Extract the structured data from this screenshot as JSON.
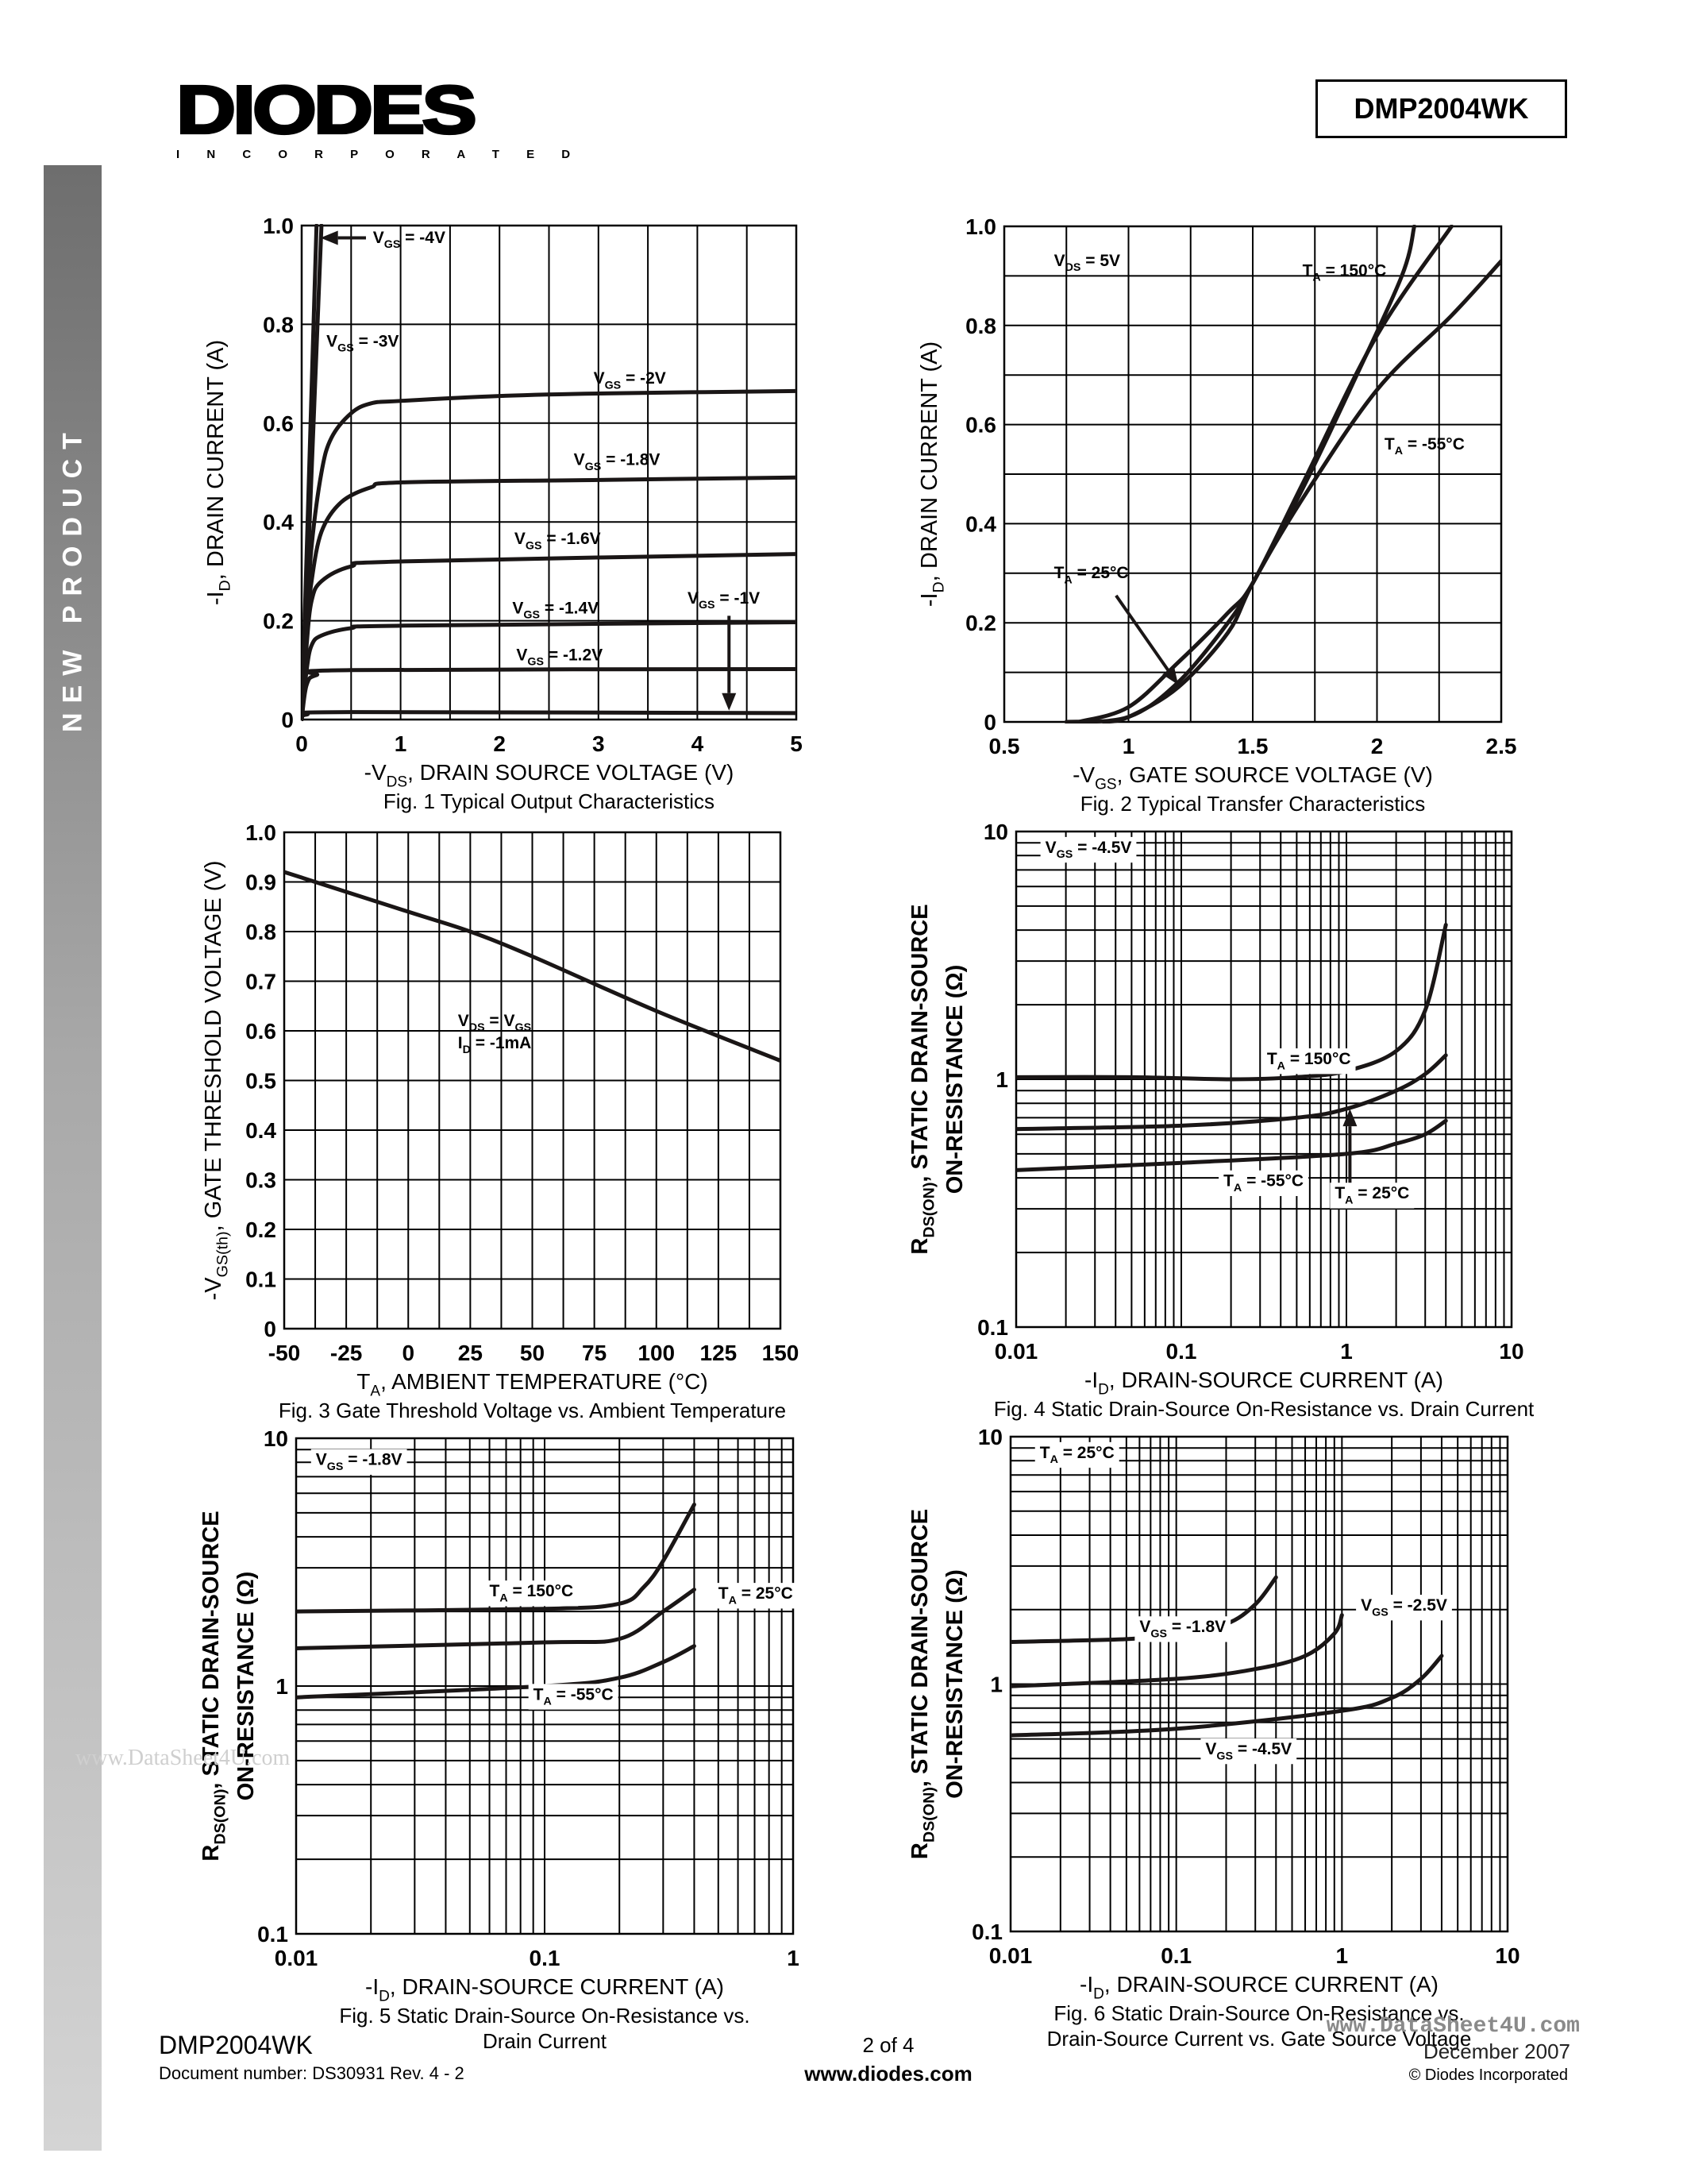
{
  "header": {
    "logo_text": "DIODES",
    "logo_subtext": "I N C O R P O R A T E D",
    "part_number": "DMP2004WK"
  },
  "sidebar": {
    "label": "NEW PRODUCT"
  },
  "watermark": "www.DataSheet4U.com",
  "footer": {
    "part_number": "DMP2004WK",
    "document_number": "Document number: DS30931 Rev. 4 - 2",
    "page": "2 of 4",
    "website": "www.diodes.com",
    "datasheet_site": "www.DataSheet4U.com",
    "date": "December 2007",
    "copyright": "© Diodes Incorporated"
  },
  "chart_data": [
    {
      "type": "line",
      "caption": [
        "Fig. 1  Typical Output Characteristics"
      ],
      "xlabel": "-V_{DS}, DRAIN SOURCE VOLTAGE (V)",
      "ylabel": [
        "-I_{D}, DRAIN CURRENT (A)"
      ],
      "ylabel_bold": false,
      "xscale": "linear",
      "yscale": "linear",
      "xlim": [
        0,
        5
      ],
      "ylim": [
        0,
        1.0
      ],
      "xticks": [
        0,
        1,
        2,
        3,
        4,
        5
      ],
      "xtick_labels": [
        "0",
        "1",
        "2",
        "3",
        "4",
        "5"
      ],
      "yticks": [
        0,
        0.2,
        0.4,
        0.6,
        0.8,
        1.0
      ],
      "ytick_labels": [
        "0",
        "0.2",
        "0.4",
        "0.6",
        "0.8",
        "1.0"
      ],
      "grid": true,
      "xgrid_step": 0.5,
      "ygrid_step": 0.2,
      "series": [
        {
          "name": "V_{GS} = -4V",
          "x": [
            0,
            0.15
          ],
          "y": [
            0,
            1.0
          ]
        },
        {
          "name": "V_{GS} = -3V",
          "x": [
            0,
            0.2
          ],
          "y": [
            0,
            1.0
          ]
        },
        {
          "name": "V_{GS} = -2V",
          "x": [
            0,
            0.05,
            0.1,
            0.2,
            0.3,
            0.5,
            0.7,
            1,
            2,
            3,
            5
          ],
          "y": [
            0,
            0.2,
            0.35,
            0.5,
            0.57,
            0.62,
            0.64,
            0.645,
            0.655,
            0.66,
            0.665
          ]
        },
        {
          "name": "V_{GS} = -1.8V",
          "x": [
            0,
            0.05,
            0.1,
            0.2,
            0.4,
            0.7,
            1,
            3,
            5
          ],
          "y": [
            0,
            0.18,
            0.28,
            0.38,
            0.44,
            0.47,
            0.48,
            0.485,
            0.49
          ]
        },
        {
          "name": "V_{GS} = -1.6V",
          "x": [
            0,
            0.05,
            0.1,
            0.2,
            0.5,
            1,
            5
          ],
          "y": [
            0,
            0.15,
            0.24,
            0.28,
            0.31,
            0.32,
            0.335
          ]
        },
        {
          "name": "V_{GS} = -1.4V",
          "x": [
            0,
            0.05,
            0.1,
            0.2,
            0.5,
            1,
            5
          ],
          "y": [
            0,
            0.1,
            0.15,
            0.17,
            0.185,
            0.19,
            0.197
          ]
        },
        {
          "name": "V_{GS} = -1.2V",
          "x": [
            0,
            0.05,
            0.15,
            0.5,
            5
          ],
          "y": [
            0,
            0.07,
            0.09,
            0.1,
            0.102
          ]
        },
        {
          "name": "V_{GS} = -1V",
          "x": [
            0,
            0.05,
            0.5,
            5
          ],
          "y": [
            0,
            0.01,
            0.015,
            0.013
          ]
        }
      ],
      "annotations": []
    },
    {
      "type": "line",
      "caption": [
        "Fig. 2  Typical Transfer Characteristics"
      ],
      "xlabel": "-V_{GS}, GATE SOURCE VOLTAGE (V)",
      "ylabel": [
        "-I_{D}, DRAIN CURRENT (A)"
      ],
      "ylabel_bold": false,
      "xscale": "linear",
      "yscale": "linear",
      "xlim": [
        0.5,
        2.5
      ],
      "ylim": [
        0,
        1.0
      ],
      "xticks": [
        0.5,
        1,
        1.5,
        2,
        2.5
      ],
      "xtick_labels": [
        "0.5",
        "1",
        "1.5",
        "2",
        "2.5"
      ],
      "yticks": [
        0,
        0.2,
        0.4,
        0.6,
        0.8,
        1.0
      ],
      "ytick_labels": [
        "0",
        "0.2",
        "0.4",
        "0.6",
        "0.8",
        "1.0"
      ],
      "grid": true,
      "xgrid_step": 0.25,
      "ygrid_step": 0.1,
      "series": [
        {
          "name": "T_{A} = 150°C",
          "x": [
            0.75,
            1,
            1.2,
            1.4,
            1.5,
            1.7,
            1.9,
            2.1,
            2.15
          ],
          "y": [
            0,
            0.01,
            0.08,
            0.2,
            0.28,
            0.47,
            0.68,
            0.9,
            1.0
          ]
        },
        {
          "name": "T_{A} = 25°C",
          "x": [
            0.8,
            1,
            1.2,
            1.4,
            1.5,
            1.7,
            2,
            2.3
          ],
          "y": [
            0,
            0.03,
            0.12,
            0.22,
            0.28,
            0.48,
            0.78,
            1.0
          ]
        },
        {
          "name": "T_{A} = -55°C",
          "x": [
            0.9,
            1,
            1.2,
            1.4,
            1.5,
            1.7,
            2,
            2.3,
            2.5
          ],
          "y": [
            0,
            0.01,
            0.07,
            0.18,
            0.28,
            0.45,
            0.67,
            0.82,
            0.93
          ]
        }
      ],
      "annotations": [
        "V_{DS} = 5V"
      ]
    },
    {
      "type": "line",
      "caption": [
        "Fig. 3  Gate Threshold Voltage vs. Ambient Temperature"
      ],
      "xlabel": "T_{A}, AMBIENT TEMPERATURE (°C)",
      "ylabel": [
        "-V_{GS(th)}, GATE THRESHOLD VOLTAGE (V)"
      ],
      "ylabel_bold": false,
      "xscale": "linear",
      "yscale": "linear",
      "xlim": [
        -50,
        150
      ],
      "ylim": [
        0,
        1.0
      ],
      "xticks": [
        -50,
        -25,
        0,
        25,
        50,
        75,
        100,
        125,
        150
      ],
      "xtick_labels": [
        "-50",
        "-25",
        "0",
        "25",
        "50",
        "75",
        "100",
        "125",
        "150"
      ],
      "yticks": [
        0,
        0.1,
        0.2,
        0.3,
        0.4,
        0.5,
        0.6,
        0.7,
        0.8,
        0.9,
        1.0
      ],
      "ytick_labels": [
        "0",
        "0.1",
        "0.2",
        "0.3",
        "0.4",
        "0.5",
        "0.6",
        "0.7",
        "0.8",
        "0.9",
        "1.0"
      ],
      "grid": true,
      "xgrid_step": 12.5,
      "ygrid_step": 0.1,
      "series": [
        {
          "name": "",
          "x": [
            -50,
            0,
            25,
            50,
            100,
            150
          ],
          "y": [
            0.92,
            0.84,
            0.8,
            0.75,
            0.64,
            0.54
          ]
        }
      ],
      "annotations": [
        "V_{DS} = V_{GS}",
        "I_{D} = -1mA"
      ]
    },
    {
      "type": "line",
      "caption": [
        "Fig. 4  Static Drain-Source On-Resistance vs. Drain Current"
      ],
      "xlabel": "-I_{D}, DRAIN-SOURCE CURRENT (A)",
      "ylabel": [
        "R_{DS(ON)}, STATIC DRAIN-SOURCE",
        "ON-RESISTANCE (Ω)"
      ],
      "ylabel_bold": true,
      "xscale": "log",
      "yscale": "log",
      "xlim": [
        0.01,
        10
      ],
      "ylim": [
        0.1,
        10
      ],
      "xticks": [
        0.01,
        0.1,
        1,
        10
      ],
      "xtick_labels": [
        "0.01",
        "0.1",
        "1",
        "10"
      ],
      "yticks": [
        0.1,
        1,
        10
      ],
      "ytick_labels": [
        "0.1",
        "1",
        "10"
      ],
      "grid": true,
      "series": [
        {
          "name": "T_{A} = 150°C",
          "x": [
            0.01,
            0.05,
            0.2,
            0.5,
            1,
            2,
            3,
            4
          ],
          "y": [
            1.02,
            1.02,
            1.0,
            1.02,
            1.08,
            1.3,
            1.9,
            4.2
          ]
        },
        {
          "name": "T_{A} = 25°C",
          "x": [
            0.01,
            0.1,
            0.5,
            1,
            2,
            3,
            4
          ],
          "y": [
            0.63,
            0.65,
            0.7,
            0.76,
            0.9,
            1.05,
            1.25
          ]
        },
        {
          "name": "T_{A} = -55°C",
          "x": [
            0.01,
            0.1,
            1,
            2,
            3,
            4
          ],
          "y": [
            0.43,
            0.46,
            0.5,
            0.55,
            0.6,
            0.68
          ]
        }
      ],
      "annotations": [
        "V_{GS} = -4.5V"
      ]
    },
    {
      "type": "line",
      "caption": [
        "Fig. 5  Static Drain-Source On-Resistance vs.",
        "Drain Current"
      ],
      "xlabel": "-I_{D}, DRAIN-SOURCE CURRENT (A)",
      "ylabel": [
        "R_{DS(ON)}, STATIC DRAIN-SOURCE",
        "ON-RESISTANCE (Ω)"
      ],
      "ylabel_bold": true,
      "xscale": "log",
      "yscale": "log",
      "xlim": [
        0.01,
        1
      ],
      "ylim": [
        0.1,
        10
      ],
      "xticks": [
        0.01,
        0.1,
        1
      ],
      "xtick_labels": [
        "0.01",
        "0.1",
        "1"
      ],
      "yticks": [
        0.1,
        1,
        10
      ],
      "ytick_labels": [
        "0.1",
        "1",
        "10"
      ],
      "grid": true,
      "series": [
        {
          "name": "T_{A} = 150°C",
          "x": [
            0.01,
            0.1,
            0.2,
            0.25,
            0.3,
            0.4
          ],
          "y": [
            2.0,
            2.05,
            2.15,
            2.5,
            3.2,
            5.4
          ]
        },
        {
          "name": "T_{A} = 25°C",
          "x": [
            0.01,
            0.1,
            0.2,
            0.3,
            0.4
          ],
          "y": [
            1.42,
            1.5,
            1.55,
            2.0,
            2.45
          ]
        },
        {
          "name": "T_{A} = -55°C",
          "x": [
            0.01,
            0.1,
            0.2,
            0.3,
            0.4
          ],
          "y": [
            0.9,
            1.0,
            1.08,
            1.25,
            1.45
          ]
        }
      ],
      "annotations": [
        "V_{GS} = -1.8V"
      ]
    },
    {
      "type": "line",
      "caption": [
        "Fig. 6  Static Drain-Source On-Resistance vs.",
        "Drain-Source Current vs. Gate Source Voltage"
      ],
      "xlabel": "-I_{D}, DRAIN-SOURCE CURRENT (A)",
      "ylabel": [
        "R_{DS(ON)}, STATIC DRAIN-SOURCE",
        "ON-RESISTANCE (Ω)"
      ],
      "ylabel_bold": true,
      "xscale": "log",
      "yscale": "log",
      "xlim": [
        0.01,
        10
      ],
      "ylim": [
        0.1,
        10
      ],
      "xticks": [
        0.01,
        0.1,
        1,
        10
      ],
      "xtick_labels": [
        "0.01",
        "0.1",
        "1",
        "10"
      ],
      "yticks": [
        0.1,
        1,
        10
      ],
      "ytick_labels": [
        "0.1",
        "1",
        "10"
      ],
      "grid": true,
      "series": [
        {
          "name": "V_{GS} = -1.8V",
          "x": [
            0.01,
            0.05,
            0.1,
            0.2,
            0.3,
            0.4
          ],
          "y": [
            1.48,
            1.52,
            1.6,
            1.75,
            2.1,
            2.7
          ]
        },
        {
          "name": "V_{GS} = -2.5V",
          "x": [
            0.01,
            0.1,
            0.3,
            0.6,
            0.9,
            1
          ],
          "y": [
            0.98,
            1.05,
            1.15,
            1.3,
            1.6,
            1.9
          ]
        },
        {
          "name": "V_{GS} = -4.5V",
          "x": [
            0.01,
            0.1,
            1,
            2,
            3,
            4
          ],
          "y": [
            0.62,
            0.66,
            0.78,
            0.88,
            1.05,
            1.3
          ]
        }
      ],
      "annotations": [
        "T_{A} = 25°C"
      ]
    }
  ]
}
